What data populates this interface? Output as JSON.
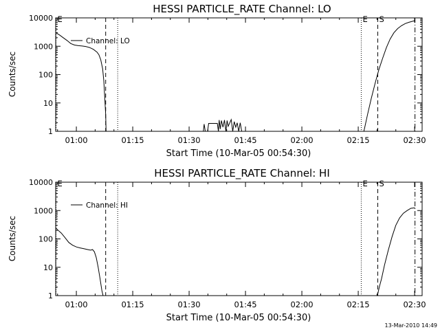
{
  "footer": {
    "timestamp": "13-Mar-2010 14:49"
  },
  "chart_data": [
    {
      "type": "line",
      "title": "HESSI PARTICLE_RATE Channel: LO",
      "xlabel": "Start Time (10-Mar-05 00:54:30)",
      "ylabel": "Counts/sec",
      "yscale": "log",
      "ylim": [
        1,
        10000
      ],
      "xlim_minutes": [
        54.5,
        152
      ],
      "xtick_labels": [
        "01:00",
        "01:15",
        "01:30",
        "01:45",
        "02:00",
        "02:15",
        "02:30"
      ],
      "xtick_minutes": [
        60,
        75,
        90,
        105,
        120,
        135,
        150
      ],
      "ytick_labels": [
        "1",
        "10",
        "100",
        "1000",
        "10000"
      ],
      "ytick_values": [
        1,
        10,
        100,
        1000,
        10000
      ],
      "legend": {
        "label": "Channel: LO",
        "placement": "top-left"
      },
      "markers": [
        {
          "label": "E",
          "style": "dotted",
          "minute": 54.6
        },
        {
          "label": "",
          "style": "dashed",
          "minute": 67.8
        },
        {
          "label": "",
          "style": "dotted",
          "minute": 71.0
        },
        {
          "label": "E",
          "style": "dotted",
          "minute": 135.8
        },
        {
          "label": "S",
          "style": "dashed",
          "minute": 140.2
        },
        {
          "label": "",
          "style": "dashdot",
          "minute": 150.1
        }
      ],
      "series": [
        {
          "name": "Channel: LO",
          "points": [
            [
              54.5,
              3000
            ],
            [
              55.5,
              2500
            ],
            [
              56.5,
              2000
            ],
            [
              57.5,
              1600
            ],
            [
              58.5,
              1250
            ],
            [
              59.5,
              1100
            ],
            [
              60.5,
              1050
            ],
            [
              61.5,
              1020
            ],
            [
              62.5,
              980
            ],
            [
              63.5,
              900
            ],
            [
              64.5,
              780
            ],
            [
              65.5,
              620
            ],
            [
              66.0,
              500
            ],
            [
              66.5,
              330
            ],
            [
              67.0,
              160
            ],
            [
              67.3,
              60
            ],
            [
              67.6,
              12
            ],
            [
              67.8,
              4
            ],
            [
              67.9,
              1
            ]
          ]
        },
        {
          "name": "",
          "points": [
            [
              93.8,
              1
            ],
            [
              94.0,
              1.8
            ],
            [
              94.3,
              1
            ],
            [
              94.9,
              1
            ],
            [
              95.2,
              1.9
            ],
            [
              97.5,
              1.9
            ],
            [
              97.8,
              1
            ],
            [
              98.0,
              2.5
            ],
            [
              98.3,
              1.2
            ],
            [
              98.6,
              2.4
            ],
            [
              99.0,
              1.4
            ],
            [
              99.4,
              2.5
            ],
            [
              99.8,
              1
            ],
            [
              100.1,
              2.4
            ],
            [
              100.4,
              1.5
            ],
            [
              101.2,
              2.6
            ],
            [
              101.6,
              1
            ],
            [
              102.0,
              2.2
            ],
            [
              102.4,
              1.4
            ],
            [
              102.8,
              2.0
            ],
            [
              103.2,
              1
            ],
            [
              103.6,
              2.0
            ],
            [
              104.0,
              1
            ]
          ]
        },
        {
          "name": "",
          "points": [
            [
              136.5,
              1
            ],
            [
              137.5,
              4
            ],
            [
              138.5,
              15
            ],
            [
              139.5,
              50
            ],
            [
              140.5,
              150
            ],
            [
              141.5,
              380
            ],
            [
              142.5,
              900
            ],
            [
              143.5,
              1800
            ],
            [
              144.5,
              3000
            ],
            [
              145.5,
              4200
            ],
            [
              146.5,
              5300
            ],
            [
              147.5,
              6300
            ],
            [
              148.5,
              7000
            ],
            [
              149.5,
              7600
            ],
            [
              150.1,
              8000
            ]
          ]
        }
      ]
    },
    {
      "type": "line",
      "title": "HESSI PARTICLE_RATE Channel: HI",
      "xlabel": "Start Time (10-Mar-05 00:54:30)",
      "ylabel": "Counts/sec",
      "yscale": "log",
      "ylim": [
        1,
        10000
      ],
      "xlim_minutes": [
        54.5,
        152
      ],
      "xtick_labels": [
        "01:00",
        "01:15",
        "01:30",
        "01:45",
        "02:00",
        "02:15",
        "02:30"
      ],
      "xtick_minutes": [
        60,
        75,
        90,
        105,
        120,
        135,
        150
      ],
      "ytick_labels": [
        "1",
        "10",
        "100",
        "1000",
        "10000"
      ],
      "ytick_values": [
        1,
        10,
        100,
        1000,
        10000
      ],
      "legend": {
        "label": "Channel: HI",
        "placement": "top-left"
      },
      "markers": [
        {
          "label": "E",
          "style": "dotted",
          "minute": 54.6
        },
        {
          "label": "",
          "style": "dashed",
          "minute": 67.8
        },
        {
          "label": "",
          "style": "dotted",
          "minute": 71.0
        },
        {
          "label": "E",
          "style": "dotted",
          "minute": 135.8
        },
        {
          "label": "S",
          "style": "dashed",
          "minute": 140.2
        },
        {
          "label": "",
          "style": "dashdot",
          "minute": 150.1
        }
      ],
      "series": [
        {
          "name": "Channel: HI",
          "points": [
            [
              54.5,
              250
            ],
            [
              55.0,
              210
            ],
            [
              56.0,
              160
            ],
            [
              57.0,
              110
            ],
            [
              58.0,
              75
            ],
            [
              59.0,
              60
            ],
            [
              60.0,
              52
            ],
            [
              61.0,
              48
            ],
            [
              62.0,
              45
            ],
            [
              63.0,
              42
            ],
            [
              63.8,
              40
            ],
            [
              64.3,
              42
            ],
            [
              64.8,
              35
            ],
            [
              65.3,
              22
            ],
            [
              65.8,
              10
            ],
            [
              66.3,
              4
            ],
            [
              66.8,
              1.5
            ],
            [
              67.1,
              1
            ]
          ]
        },
        {
          "name": "",
          "points": [
            [
              140.1,
              1
            ],
            [
              140.6,
              2
            ],
            [
              141.2,
              4
            ],
            [
              142.0,
              12
            ],
            [
              143.0,
              40
            ],
            [
              144.0,
              120
            ],
            [
              145.0,
              300
            ],
            [
              146.0,
              550
            ],
            [
              147.0,
              800
            ],
            [
              148.0,
              1000
            ],
            [
              149.0,
              1200
            ],
            [
              150.1,
              1250
            ]
          ]
        }
      ]
    }
  ]
}
